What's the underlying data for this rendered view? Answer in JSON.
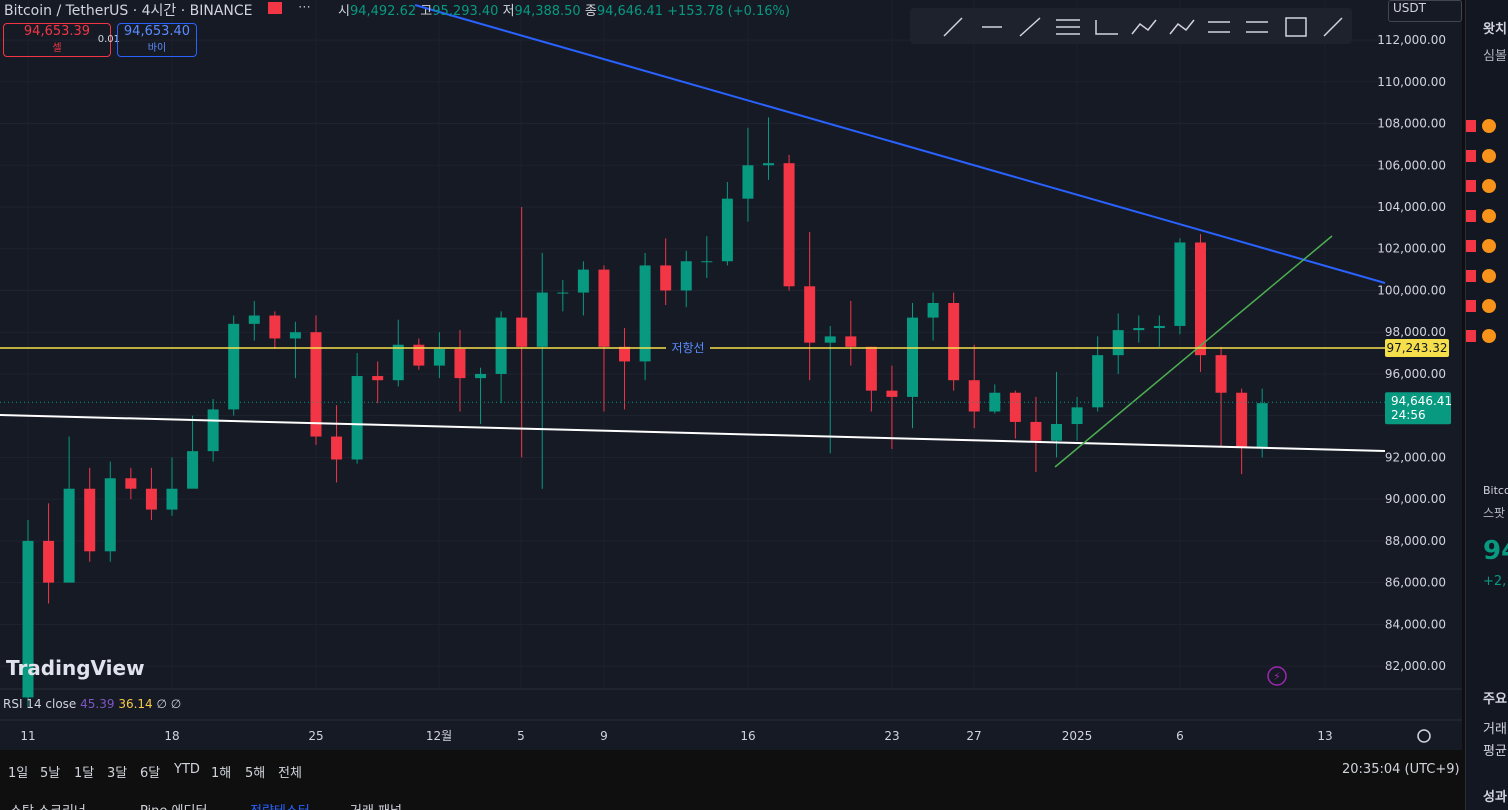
{
  "header": {
    "symbol": "Bitcoin / TetherUS · 4시간 · BINANCE",
    "ohlc": {
      "open_label": "시",
      "open": "94,492.62",
      "high_label": "고",
      "high": "95,293.40",
      "low_label": "저",
      "low": "94,388.50",
      "close_label": "종",
      "close": "94,646.41",
      "change": "+153.78 (+0.16%)"
    },
    "sell": {
      "price": "94,653.39",
      "label": "셀"
    },
    "spread": "0.01",
    "buy": {
      "price": "94,653.40",
      "label": "바이"
    },
    "currency": "USDT"
  },
  "watermark": "TradingView",
  "price_axis": {
    "ylim": [
      80950,
      113920
    ],
    "ticks": [
      {
        "value": 82000,
        "label": "82,000.00"
      },
      {
        "value": 84000,
        "label": "84,000.00"
      },
      {
        "value": 86000,
        "label": "86,000.00"
      },
      {
        "value": 88000,
        "label": "88,000.00"
      },
      {
        "value": 90000,
        "label": "90,000.00"
      },
      {
        "value": 92000,
        "label": "92,000.00"
      },
      {
        "value": 94000,
        "label": "94,000.00"
      },
      {
        "value": 96000,
        "label": "96,000.00"
      },
      {
        "value": 98000,
        "label": "98,000.00"
      },
      {
        "value": 100000,
        "label": "100,000.00"
      },
      {
        "value": 102000,
        "label": "102,000.00"
      },
      {
        "value": 104000,
        "label": "104,000.00"
      },
      {
        "value": 106000,
        "label": "106,000.00"
      },
      {
        "value": 108000,
        "label": "108,000.00"
      },
      {
        "value": 110000,
        "label": "110,000.00"
      },
      {
        "value": 112000,
        "label": "112,000.00"
      }
    ]
  },
  "resistance": {
    "value": 97243.32,
    "label": "97,243.32",
    "name": "저항선"
  },
  "last_price": {
    "value": 94646.41,
    "label": "94,646.41",
    "countdown": "24:56"
  },
  "date_labels": [
    "11",
    "18",
    "25",
    "12월",
    "5",
    "9",
    "16",
    "23",
    "27",
    "2025",
    "6",
    "13"
  ],
  "candles": {
    "up_color": "#089981",
    "down_color": "#f23645",
    "open": [
      80500,
      88000,
      86000,
      90500,
      87500,
      91000,
      90500,
      89500,
      90500,
      92300,
      94300,
      98400,
      98800,
      97700,
      98000,
      93000,
      91900,
      95900,
      95700,
      97400,
      96400,
      97200,
      95800,
      96000,
      98700,
      97300,
      99900,
      99900,
      101000,
      97300,
      96600,
      101200,
      100000,
      101400,
      101400,
      104400,
      106000,
      106100,
      100200,
      97500,
      97800,
      97300,
      95200,
      94900,
      98700,
      99400,
      95700,
      94200,
      95100,
      93700,
      92800,
      93600,
      94400,
      96900,
      98100,
      98200,
      98300,
      102300,
      96900,
      95100,
      92500
    ],
    "high": [
      89000,
      89800,
      93000,
      91500,
      91800,
      91500,
      91500,
      92000,
      94000,
      94800,
      98800,
      99500,
      99000,
      98500,
      98800,
      94500,
      97000,
      96600,
      98600,
      97700,
      98000,
      98100,
      96300,
      99000,
      104000,
      101800,
      100500,
      101400,
      101200,
      98200,
      101800,
      102500,
      101900,
      102600,
      105200,
      107800,
      108300,
      106500,
      102800,
      98300,
      99500,
      97300,
      96400,
      99400,
      99900,
      99900,
      97400,
      95500,
      95200,
      94900,
      96100,
      94900,
      97800,
      98900,
      98800,
      98800,
      102500,
      102700,
      97300,
      95300,
      95300
    ],
    "low": [
      80000,
      85000,
      86500,
      87000,
      87000,
      90000,
      89000,
      89200,
      90800,
      91800,
      94000,
      97600,
      97200,
      95800,
      92600,
      90800,
      91700,
      94600,
      95400,
      96200,
      95800,
      94200,
      93600,
      94600,
      92000,
      90500,
      99000,
      98800,
      94200,
      94300,
      95700,
      99300,
      99200,
      100600,
      101200,
      103300,
      105300,
      100000,
      95700,
      92200,
      96400,
      94200,
      92400,
      93400,
      97600,
      95200,
      93400,
      94100,
      92900,
      91300,
      92000,
      92800,
      94200,
      96000,
      97500,
      97300,
      97900,
      96100,
      92500,
      91200,
      92000
    ],
    "close": [
      88000,
      86000,
      90500,
      87500,
      91000,
      90500,
      89500,
      90500,
      92300,
      94300,
      98400,
      98800,
      97700,
      98000,
      93000,
      91900,
      95900,
      95700,
      97400,
      96400,
      97200,
      95800,
      96000,
      98700,
      97300,
      99900,
      99900,
      101000,
      97300,
      96600,
      101200,
      100000,
      101400,
      101400,
      104400,
      106000,
      106100,
      100200,
      97500,
      97800,
      97300,
      95200,
      94900,
      98700,
      99400,
      95700,
      94200,
      95100,
      93700,
      92800,
      93600,
      94400,
      96900,
      98100,
      98200,
      98300,
      102300,
      96900,
      95100,
      92500,
      94600
    ]
  },
  "rsi": {
    "name": "RSI 14 close",
    "value": "45.39",
    "ma": "36.14",
    "extra": "∅ ∅"
  },
  "ranges": [
    "1일",
    "5날",
    "1달",
    "3달",
    "6달",
    "YTD",
    "1해",
    "5해",
    "전체"
  ],
  "clock": "20:35:04 (UTC+9)",
  "tabs": [
    "스탁 스크리너",
    "Pine 에디터",
    "전략테스터",
    "거래 패널"
  ],
  "sidebar": {
    "watchlist": "왓치",
    "symbol_col": "심볼",
    "detail_symbol": "Bitcoi",
    "detail_market": "스팟",
    "detail_price": "94",
    "detail_change": "+2,",
    "key_stats": "주요",
    "volume": "거래",
    "average": "평균",
    "performance": "성과"
  }
}
